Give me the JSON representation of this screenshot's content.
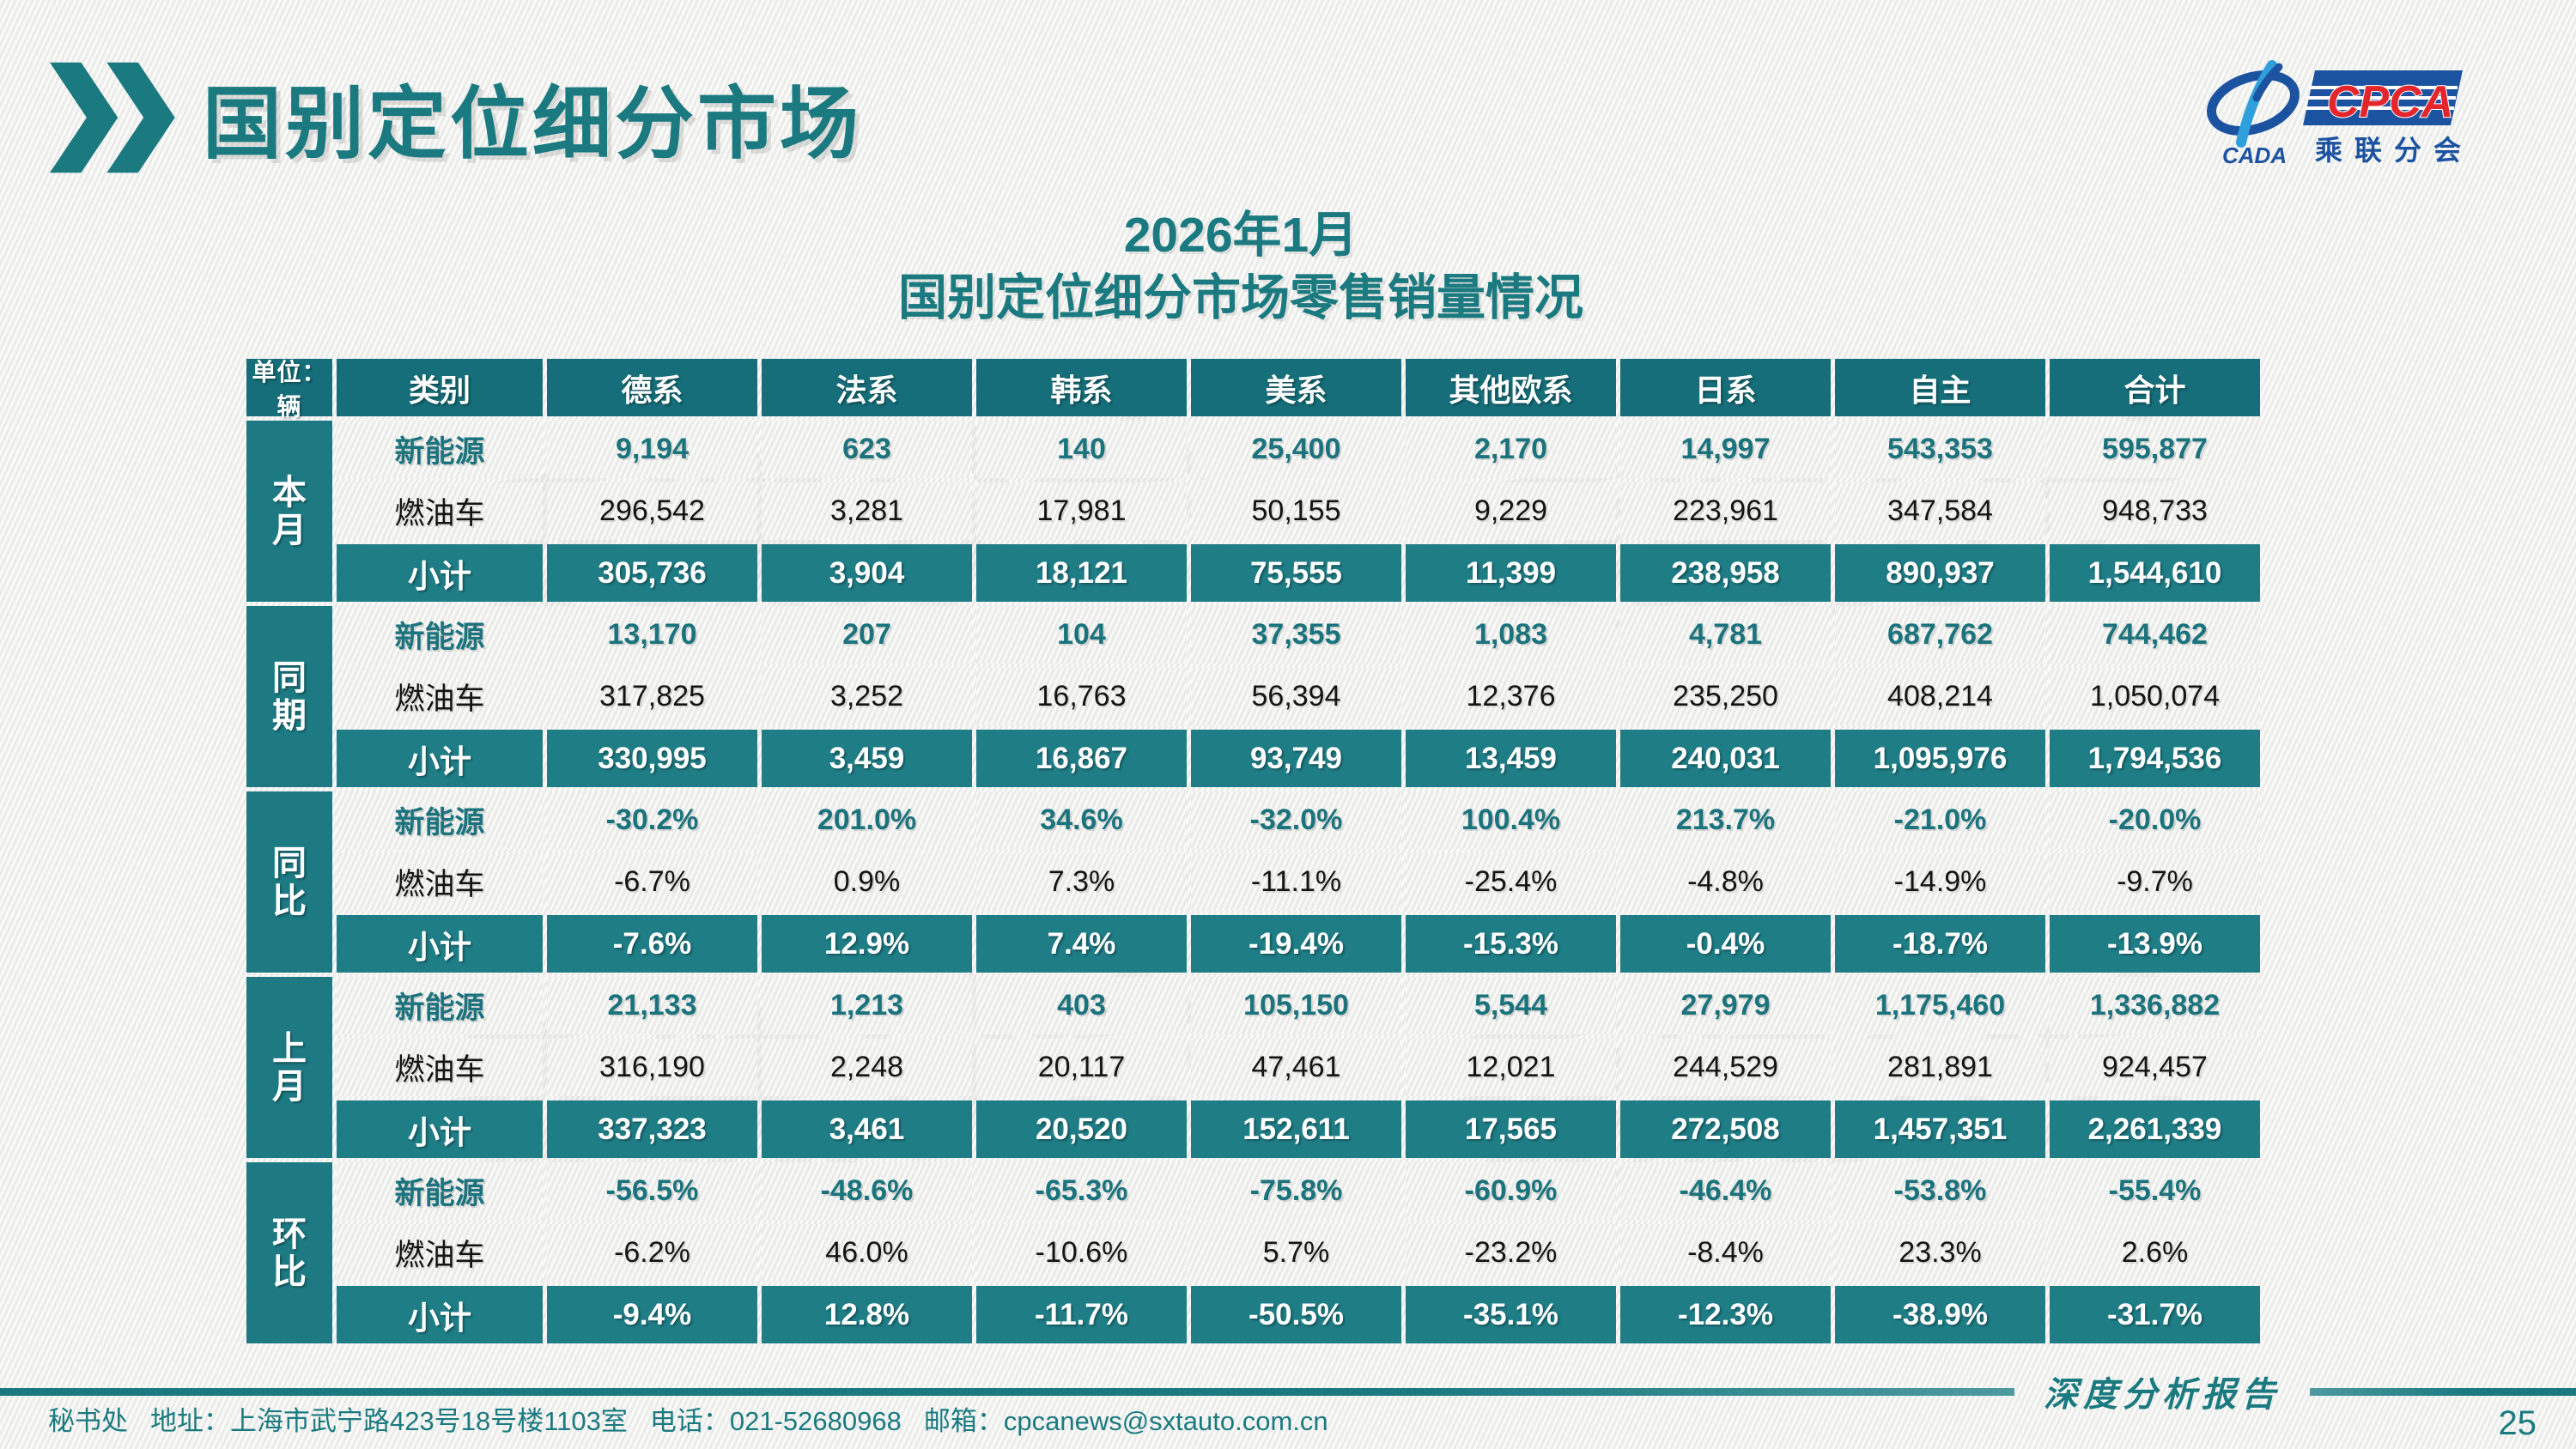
{
  "page": {
    "title": "国别定位细分市场",
    "subtitle_line1": "2026年1月",
    "subtitle_line2": "国别定位细分市场零售销量情况",
    "report_tag": "深度分析报告",
    "page_number": "25",
    "footer": {
      "secretariat": "秘书处",
      "address": "地址：上海市武宁路423号18号楼1103室",
      "phone": "电话：021-52680968",
      "email": "邮箱：cpcanews@sxtauto.com.cn"
    },
    "watermark_text": "乘联分会"
  },
  "logo": {
    "cpca": "CPCA",
    "cada": "CADA",
    "org_cn": "乘联分会"
  },
  "colors": {
    "teal": "#1A7A80",
    "header-teal": "#156E79",
    "subtotal-teal": "#1F7D86",
    "group-teal": "#1D7A83",
    "nev-text": "#1B737D",
    "logo-blue": "#1C53A0",
    "logo-red": "#E2262C"
  },
  "table": {
    "unit_label": "单位：辆",
    "category_header": "类别",
    "columns": [
      "德系",
      "法系",
      "韩系",
      "美系",
      "其他欧系",
      "日系",
      "自主",
      "合计"
    ],
    "row_groups": [
      {
        "label": "本月",
        "rows": [
          {
            "label": "新能源",
            "type": "nev",
            "values": [
              "9,194",
              "623",
              "140",
              "25,400",
              "2,170",
              "14,997",
              "543,353",
              "595,877"
            ]
          },
          {
            "label": "燃油车",
            "type": "fuel",
            "values": [
              "296,542",
              "3,281",
              "17,981",
              "50,155",
              "9,229",
              "223,961",
              "347,584",
              "948,733"
            ]
          },
          {
            "label": "小计",
            "type": "subtotal",
            "values": [
              "305,736",
              "3,904",
              "18,121",
              "75,555",
              "11,399",
              "238,958",
              "890,937",
              "1,544,610"
            ]
          }
        ]
      },
      {
        "label": "同期",
        "rows": [
          {
            "label": "新能源",
            "type": "nev",
            "values": [
              "13,170",
              "207",
              "104",
              "37,355",
              "1,083",
              "4,781",
              "687,762",
              "744,462"
            ]
          },
          {
            "label": "燃油车",
            "type": "fuel",
            "values": [
              "317,825",
              "3,252",
              "16,763",
              "56,394",
              "12,376",
              "235,250",
              "408,214",
              "1,050,074"
            ]
          },
          {
            "label": "小计",
            "type": "subtotal",
            "values": [
              "330,995",
              "3,459",
              "16,867",
              "93,749",
              "13,459",
              "240,031",
              "1,095,976",
              "1,794,536"
            ]
          }
        ]
      },
      {
        "label": "同比",
        "rows": [
          {
            "label": "新能源",
            "type": "nev",
            "values": [
              "-30.2%",
              "201.0%",
              "34.6%",
              "-32.0%",
              "100.4%",
              "213.7%",
              "-21.0%",
              "-20.0%"
            ]
          },
          {
            "label": "燃油车",
            "type": "fuel",
            "values": [
              "-6.7%",
              "0.9%",
              "7.3%",
              "-11.1%",
              "-25.4%",
              "-4.8%",
              "-14.9%",
              "-9.7%"
            ]
          },
          {
            "label": "小计",
            "type": "subtotal",
            "values": [
              "-7.6%",
              "12.9%",
              "7.4%",
              "-19.4%",
              "-15.3%",
              "-0.4%",
              "-18.7%",
              "-13.9%"
            ]
          }
        ]
      },
      {
        "label": "上月",
        "rows": [
          {
            "label": "新能源",
            "type": "nev",
            "values": [
              "21,133",
              "1,213",
              "403",
              "105,150",
              "5,544",
              "27,979",
              "1,175,460",
              "1,336,882"
            ]
          },
          {
            "label": "燃油车",
            "type": "fuel",
            "values": [
              "316,190",
              "2,248",
              "20,117",
              "47,461",
              "12,021",
              "244,529",
              "281,891",
              "924,457"
            ]
          },
          {
            "label": "小计",
            "type": "subtotal",
            "values": [
              "337,323",
              "3,461",
              "20,520",
              "152,611",
              "17,565",
              "272,508",
              "1,457,351",
              "2,261,339"
            ]
          }
        ]
      },
      {
        "label": "环比",
        "rows": [
          {
            "label": "新能源",
            "type": "nev",
            "values": [
              "-56.5%",
              "-48.6%",
              "-65.3%",
              "-75.8%",
              "-60.9%",
              "-46.4%",
              "-53.8%",
              "-55.4%"
            ]
          },
          {
            "label": "燃油车",
            "type": "fuel",
            "values": [
              "-6.2%",
              "46.0%",
              "-10.6%",
              "5.7%",
              "-23.2%",
              "-8.4%",
              "23.3%",
              "2.6%"
            ]
          },
          {
            "label": "小计",
            "type": "subtotal",
            "values": [
              "-9.4%",
              "12.8%",
              "-11.7%",
              "-50.5%",
              "-35.1%",
              "-12.3%",
              "-38.9%",
              "-31.7%"
            ]
          }
        ]
      }
    ]
  }
}
